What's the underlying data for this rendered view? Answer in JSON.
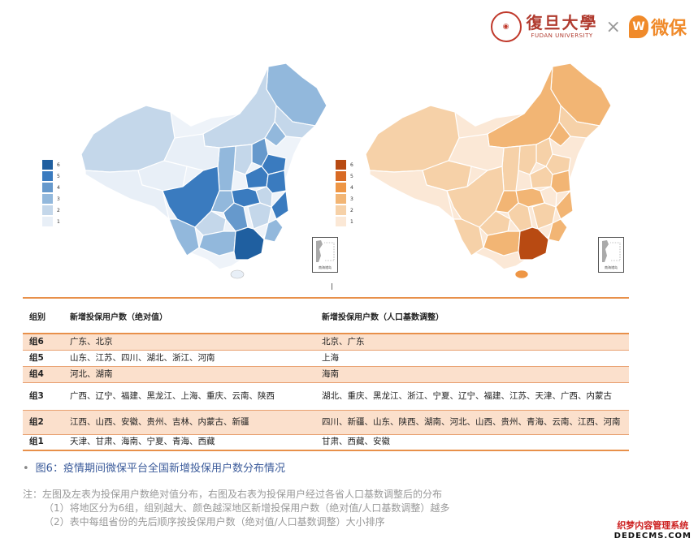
{
  "header": {
    "fudan_cn": "復旦大學",
    "fudan_en": "FUDAN UNIVERSITY",
    "times": "×",
    "partner_name": "微保"
  },
  "legend": {
    "levels": [
      "6",
      "5",
      "4",
      "3",
      "2",
      "1"
    ],
    "blue_colors": [
      "#1f5fa0",
      "#3a7bbf",
      "#6699cc",
      "#92b8dc",
      "#c4d7ea",
      "#e8eff7"
    ],
    "orange_colors": [
      "#b84a12",
      "#d86a24",
      "#ee9645",
      "#f2b574",
      "#f6d1a8",
      "#fbe8d6"
    ]
  },
  "inset_caption": "南海诸岛",
  "table": {
    "headers": [
      "组别",
      "新增投保用户数（绝对值）",
      "新增投保用户数（人口基数调整）"
    ],
    "rows": [
      {
        "group": "组6",
        "absolute": "广东、北京",
        "adjusted": "北京、广东",
        "shade": true
      },
      {
        "group": "组5",
        "absolute": "山东、江苏、四川、湖北、浙江、河南",
        "adjusted": "上海",
        "shade": false
      },
      {
        "group": "组4",
        "absolute": "河北、湖南",
        "adjusted": "海南",
        "shade": true
      },
      {
        "group": "组3",
        "absolute": "广西、辽宁、福建、黑龙江、上海、重庆、云南、陕西",
        "adjusted": "湖北、重庆、黑龙江、浙江、宁夏、辽宁、福建、江苏、天津、广西、内蒙古",
        "shade": false
      },
      {
        "group": "组2",
        "absolute": "江西、山西、安徽、贵州、吉林、内蒙古、新疆",
        "adjusted": "四川、新疆、山东、陕西、湖南、河北、山西、贵州、青海、云南、江西、河南",
        "shade": true
      },
      {
        "group": "组1",
        "absolute": "天津、甘肃、海南、宁夏、青海、西藏",
        "adjusted": "甘肃、西藏、安徽",
        "shade": false
      }
    ]
  },
  "caption": {
    "bullet": "•",
    "text": "图6：疫情期间微保平台全国新增投保用户数分布情况"
  },
  "notes": {
    "line1": "注：左图及左表为投保用户数绝对值分布，右图及右表为投保用户经过各省人口基数调整后的分布",
    "line2": "（1）将地区分为6组，组别越大、颜色越深地区新增投保用户数（绝对值/人口基数调整）越多",
    "line3": "（2）表中每组省份的先后顺序按投保用户数（绝对值/人口基数调整）大小排序"
  },
  "watermark": {
    "top": "织梦内容管理系统",
    "bottom": "DEDECMS.COM"
  }
}
